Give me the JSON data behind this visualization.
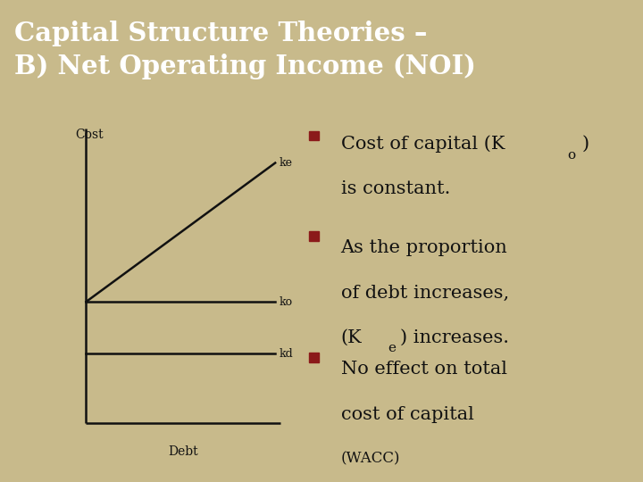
{
  "title_line1": "Capital Structure Theories –",
  "title_line2": "B) Net Operating Income (NOI)",
  "title_bg_color": "#8B1A1A",
  "title_text_color": "#FFFFFF",
  "body_bg_color": "#C8BA8B",
  "fig_width": 7.2,
  "fig_height": 5.4,
  "graph_xlabel": "Debt",
  "graph_ylabel": "Cost",
  "ke_label": "ke",
  "ko_label": "ko",
  "kd_label": "kd",
  "bullet_color": "#8B1A1A",
  "text_color": "#111111",
  "line_color": "#111111",
  "title_fontsize": 21,
  "body_fontsize": 15,
  "label_fontsize": 9,
  "small_fontsize": 11
}
